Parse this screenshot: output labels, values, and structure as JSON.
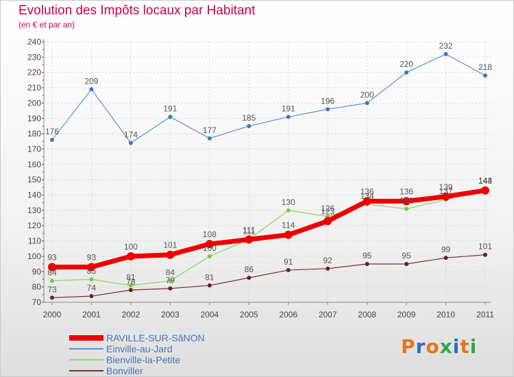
{
  "header": {
    "title": "Evolution des Impôts locaux par Habitant",
    "subtitle": "(en € et par an)"
  },
  "brand": {
    "letters": [
      "P",
      "r",
      "o",
      "x",
      "i",
      "t",
      "i"
    ],
    "colors": [
      "#e8751a",
      "#2b6cc4",
      "#e8751a",
      "#2fa84f",
      "#2b6cc4",
      "#e8751a",
      "#2fa84f"
    ]
  },
  "chart_data": {
    "type": "line",
    "x": [
      "2000",
      "2001",
      "2002",
      "2003",
      "2004",
      "2005",
      "2006",
      "2007",
      "2008",
      "2009",
      "2010",
      "2011"
    ],
    "yticks": [
      "70",
      "80",
      "90",
      "100",
      "110",
      "120",
      "130",
      "140",
      "150",
      "160",
      "170",
      "180",
      "190",
      "200",
      "210",
      "220",
      "230",
      "240"
    ],
    "ylim": [
      70,
      240
    ],
    "grid": true,
    "legend_position": "bottom-left",
    "series": [
      {
        "name": "Einville-au-Jard",
        "color": "#5b8fcc",
        "marker": "#3a78c0",
        "width": 1.2,
        "radius": 3,
        "values": [
          176,
          209,
          174,
          191,
          177,
          185,
          191,
          196,
          200,
          220,
          232,
          218
        ],
        "labels": [
          "176",
          "209",
          "174",
          "191",
          "177",
          "185",
          "191",
          "196",
          "200",
          "220",
          "232",
          "218"
        ]
      },
      {
        "name": "Bonviller",
        "color": "#7a2a2a",
        "marker": "#6a1f1f",
        "width": 1.2,
        "radius": 3,
        "values": [
          73,
          74,
          78,
          79,
          81,
          86,
          91,
          92,
          95,
          95,
          99,
          101
        ],
        "labels": [
          "73",
          "74",
          "78",
          "79",
          "81",
          "86",
          "91",
          "92",
          "95",
          "95",
          "99",
          "101"
        ]
      },
      {
        "name": "Bienville-la-Petite",
        "color": "#99d66b",
        "marker": "#7cc442",
        "width": 1.4,
        "radius": 3,
        "values": [
          84,
          85,
          81,
          84,
          100,
          111,
          130,
          126,
          134,
          131,
          137,
          144
        ],
        "labels": [
          "84",
          "85",
          "81",
          "84",
          "100",
          "111",
          "130",
          "126",
          "134",
          "131",
          "137",
          "144"
        ]
      },
      {
        "name": "RAVILLE-SUR-SâNON",
        "color": "#ee0000",
        "marker": "#ee0000",
        "width": 7,
        "radius": 6,
        "values": [
          93,
          93,
          100,
          101,
          108,
          111,
          114,
          123,
          136,
          136,
          139,
          143
        ],
        "labels": [
          "93",
          "93",
          "100",
          "101",
          "108",
          "111",
          "114",
          "123",
          "136",
          "136",
          "139",
          "143"
        ]
      }
    ],
    "legend_order": [
      "RAVILLE-SUR-SâNON",
      "Einville-au-Jard",
      "Bienville-la-Petite",
      "Bonviller"
    ]
  }
}
